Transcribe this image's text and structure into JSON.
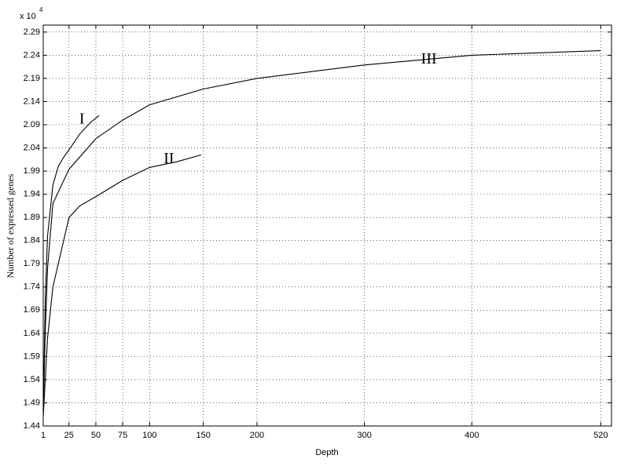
{
  "chart_data": {
    "type": "line",
    "x_label": "Depth",
    "y_label": "Number of expressed genes",
    "y_multiplier": "x 10",
    "y_exponent": "4",
    "xlim": [
      1,
      530
    ],
    "ylim": [
      1.44,
      2.305
    ],
    "xticks": [
      1,
      25,
      50,
      75,
      100,
      150,
      200,
      300,
      400,
      520
    ],
    "yticks": [
      1.44,
      1.49,
      1.54,
      1.59,
      1.64,
      1.69,
      1.74,
      1.79,
      1.84,
      1.89,
      1.94,
      1.99,
      2.04,
      2.09,
      2.14,
      2.19,
      2.24,
      2.29
    ],
    "grid": true,
    "series": [
      {
        "name": "I",
        "color": "#000000",
        "x": [
          1,
          3,
          5,
          10,
          15,
          20,
          25,
          35,
          45,
          53
        ],
        "values": [
          1.47,
          1.72,
          1.85,
          1.96,
          2.0,
          2.02,
          2.036,
          2.07,
          2.095,
          2.11
        ]
      },
      {
        "name": "II",
        "color": "#000000",
        "x": [
          1,
          5,
          10,
          25,
          35,
          50,
          75,
          100,
          125,
          148
        ],
        "values": [
          1.46,
          1.63,
          1.74,
          1.89,
          1.915,
          1.935,
          1.97,
          1.998,
          2.01,
          2.025
        ]
      },
      {
        "name": "III",
        "color": "#000000",
        "x": [
          1,
          3,
          5,
          10,
          25,
          50,
          75,
          100,
          150,
          200,
          300,
          400,
          520
        ],
        "values": [
          1.47,
          1.65,
          1.78,
          1.92,
          1.994,
          2.06,
          2.1,
          2.133,
          2.167,
          2.19,
          2.219,
          2.24,
          2.25
        ]
      }
    ]
  }
}
